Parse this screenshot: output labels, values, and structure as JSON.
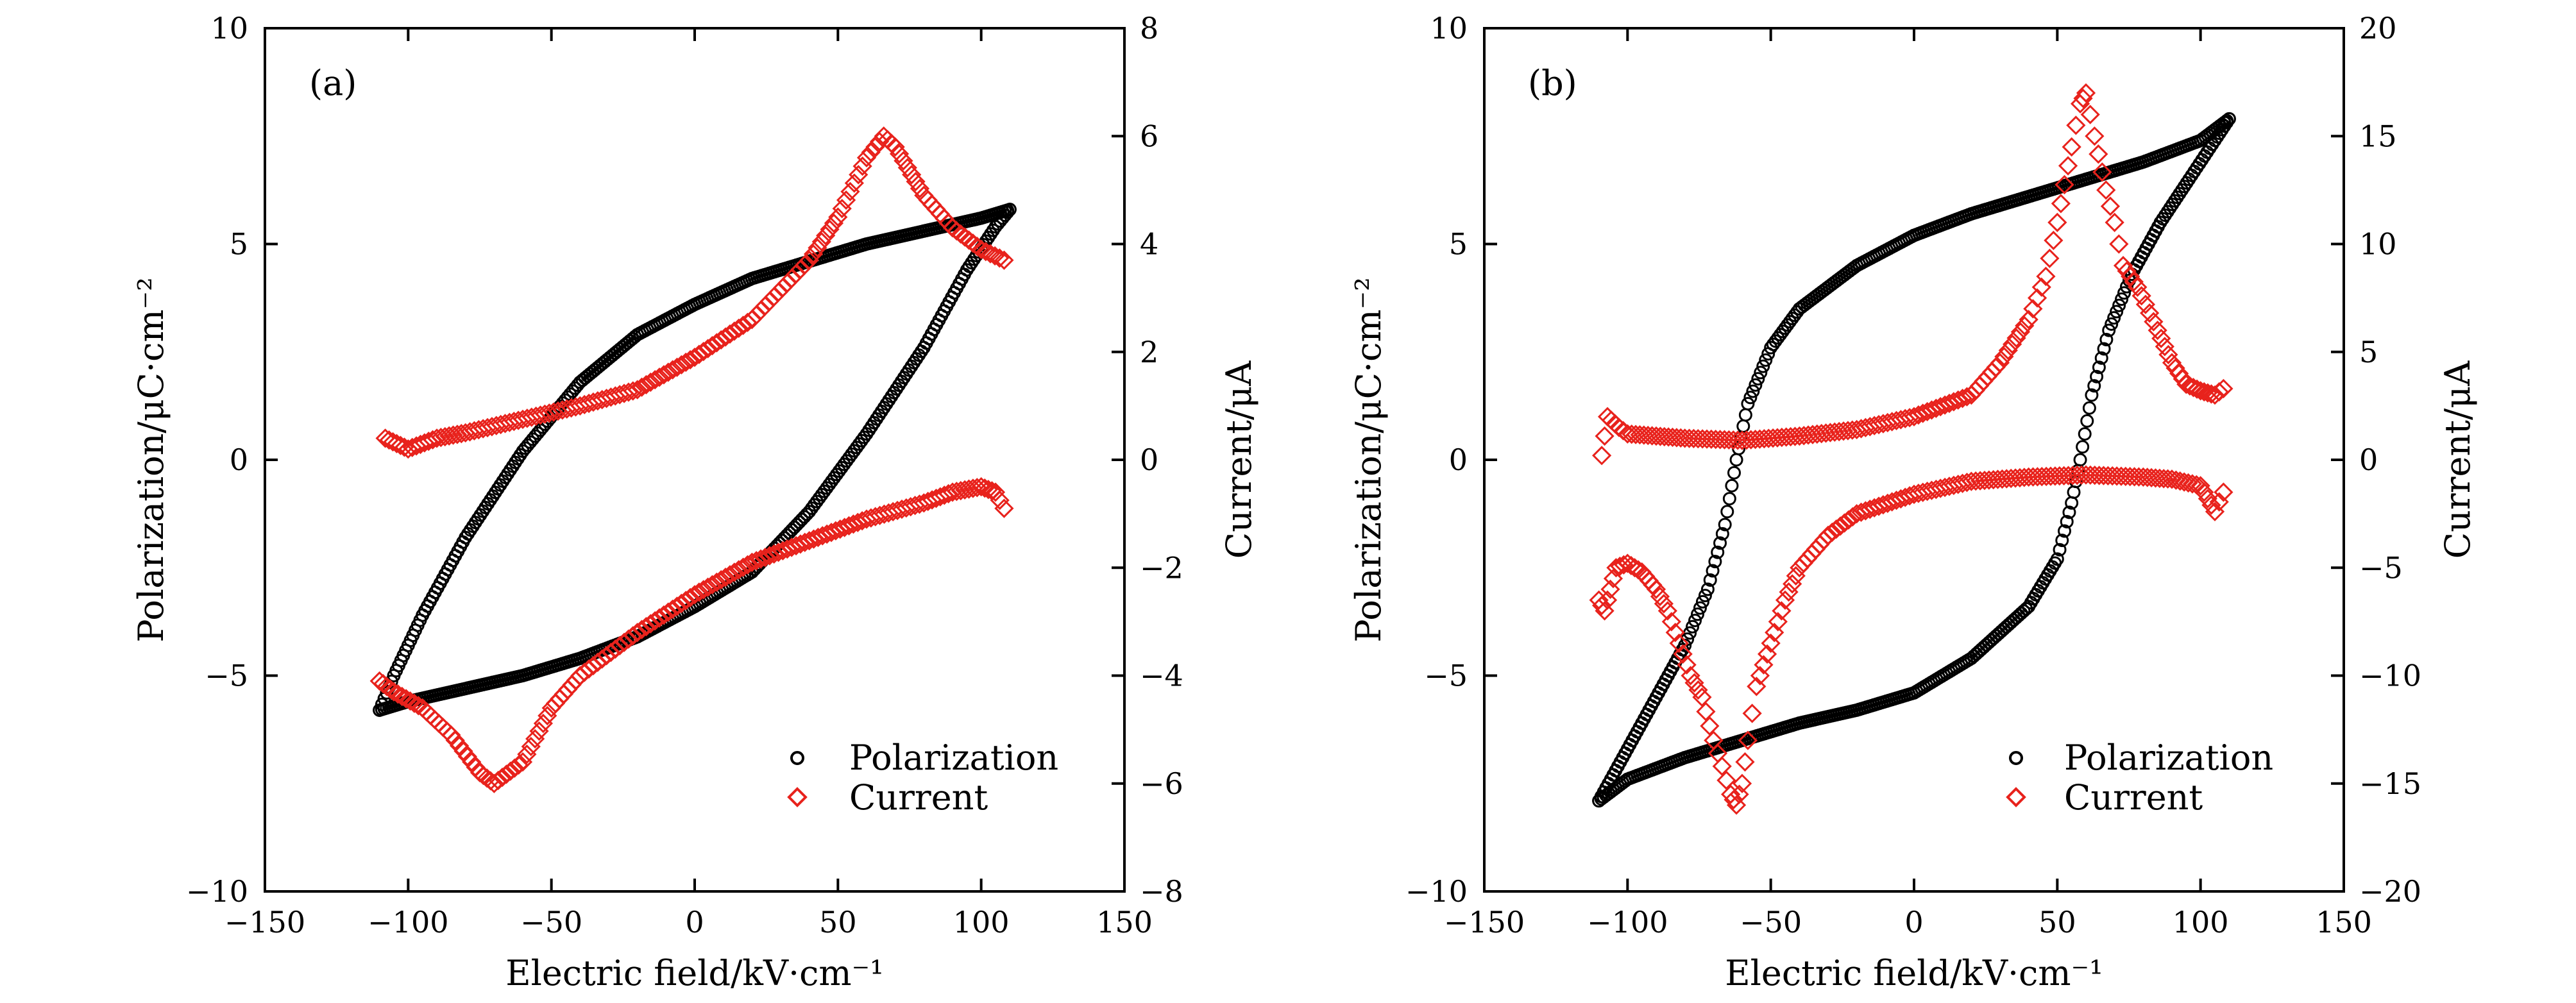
{
  "chart_data": [
    {
      "type": "scatter",
      "panel_label": "(a)",
      "xlabel": "Electric field/kV·cm⁻¹",
      "ylabel_left": "Polarization/μC·cm⁻²",
      "ylabel_right": "Current/μA",
      "xlim": [
        -150,
        150
      ],
      "ylim_left": [
        -10,
        10
      ],
      "ylim_right": [
        -8,
        8
      ],
      "x_ticks": [
        "−150",
        "−100",
        "−50",
        "0",
        "50",
        "100",
        "150"
      ],
      "y_left_ticks": [
        "−10",
        "−5",
        "0",
        "5",
        "10"
      ],
      "y_right_ticks": [
        "−8",
        "−6",
        "−4",
        "−2",
        "0",
        "2",
        "4",
        "6",
        "8"
      ],
      "legend": {
        "position": "bottom-right",
        "entries": [
          "Polarization",
          "Current"
        ]
      },
      "series": [
        {
          "name": "Polarization",
          "axis": "left",
          "marker": "circle",
          "color": "#000000",
          "branches": [
            [
              [
                110,
                5.8
              ],
              [
                100,
                5.6
              ],
              [
                80,
                5.3
              ],
              [
                60,
                5.0
              ],
              [
                40,
                4.6
              ],
              [
                20,
                4.2
              ],
              [
                0,
                3.6
              ],
              [
                -20,
                2.9
              ],
              [
                -40,
                1.8
              ],
              [
                -60,
                0.2
              ],
              [
                -80,
                -1.8
              ],
              [
                -95,
                -3.6
              ],
              [
                -105,
                -5.0
              ],
              [
                -110,
                -5.8
              ]
            ],
            [
              [
                -110,
                -5.8
              ],
              [
                -100,
                -5.6
              ],
              [
                -80,
                -5.3
              ],
              [
                -60,
                -5.0
              ],
              [
                -40,
                -4.6
              ],
              [
                -20,
                -4.1
              ],
              [
                0,
                -3.4
              ],
              [
                20,
                -2.6
              ],
              [
                40,
                -1.2
              ],
              [
                60,
                0.6
              ],
              [
                80,
                2.6
              ],
              [
                95,
                4.4
              ],
              [
                105,
                5.4
              ],
              [
                110,
                5.8
              ]
            ]
          ]
        },
        {
          "name": "Current",
          "axis": "right",
          "marker": "diamond",
          "color": "#e8221c",
          "branches": [
            [
              [
                -108,
                0.4
              ],
              [
                -104,
                0.3
              ],
              [
                -100,
                0.2
              ],
              [
                -90,
                0.4
              ],
              [
                -80,
                0.5
              ],
              [
                -60,
                0.75
              ],
              [
                -40,
                1.0
              ],
              [
                -20,
                1.3
              ],
              [
                0,
                1.9
              ],
              [
                20,
                2.6
              ],
              [
                40,
                3.7
              ],
              [
                50,
                4.5
              ],
              [
                60,
                5.6
              ],
              [
                66,
                6.0
              ],
              [
                70,
                5.8
              ],
              [
                80,
                4.9
              ],
              [
                90,
                4.3
              ],
              [
                100,
                3.9
              ],
              [
                108,
                3.7
              ]
            ],
            [
              [
                108,
                -0.9
              ],
              [
                105,
                -0.6
              ],
              [
                100,
                -0.5
              ],
              [
                90,
                -0.6
              ],
              [
                80,
                -0.8
              ],
              [
                60,
                -1.1
              ],
              [
                40,
                -1.5
              ],
              [
                20,
                -1.9
              ],
              [
                0,
                -2.5
              ],
              [
                -20,
                -3.2
              ],
              [
                -40,
                -4.0
              ],
              [
                -50,
                -4.6
              ],
              [
                -60,
                -5.6
              ],
              [
                -70,
                -6.0
              ],
              [
                -75,
                -5.8
              ],
              [
                -85,
                -5.1
              ],
              [
                -95,
                -4.6
              ],
              [
                -105,
                -4.3
              ],
              [
                -110,
                -4.1
              ]
            ]
          ]
        }
      ]
    },
    {
      "type": "scatter",
      "panel_label": "(b)",
      "xlabel": "Electric field/kV·cm⁻¹",
      "ylabel_left": "Polarization/μC·cm⁻²",
      "ylabel_right": "Current/μA",
      "xlim": [
        -150,
        150
      ],
      "ylim_left": [
        -10,
        10
      ],
      "ylim_right": [
        -20,
        20
      ],
      "x_ticks": [
        "−150",
        "−100",
        "−50",
        "0",
        "50",
        "100",
        "150"
      ],
      "y_left_ticks": [
        "−10",
        "−5",
        "0",
        "5",
        "10"
      ],
      "y_right_ticks": [
        "−20",
        "−15",
        "−10",
        "−5",
        "0",
        "5",
        "10",
        "15",
        "20"
      ],
      "legend": {
        "position": "bottom-right",
        "entries": [
          "Polarization",
          "Current"
        ]
      },
      "series": [
        {
          "name": "Polarization",
          "axis": "left",
          "marker": "circle",
          "color": "#000000",
          "branches": [
            [
              [
                110,
                7.9
              ],
              [
                100,
                7.4
              ],
              [
                80,
                6.9
              ],
              [
                60,
                6.5
              ],
              [
                40,
                6.1
              ],
              [
                20,
                5.7
              ],
              [
                0,
                5.2
              ],
              [
                -20,
                4.5
              ],
              [
                -40,
                3.5
              ],
              [
                -50,
                2.6
              ],
              [
                -58,
                1.3
              ],
              [
                -62,
                0.0
              ],
              [
                -66,
                -1.5
              ],
              [
                -72,
                -3.0
              ],
              [
                -80,
                -4.3
              ],
              [
                -90,
                -5.5
              ],
              [
                -100,
                -6.7
              ],
              [
                -110,
                -7.9
              ]
            ],
            [
              [
                -110,
                -7.9
              ],
              [
                -100,
                -7.4
              ],
              [
                -80,
                -6.9
              ],
              [
                -60,
                -6.5
              ],
              [
                -40,
                -6.1
              ],
              [
                -20,
                -5.8
              ],
              [
                0,
                -5.4
              ],
              [
                20,
                -4.6
              ],
              [
                40,
                -3.4
              ],
              [
                50,
                -2.3
              ],
              [
                55,
                -1.0
              ],
              [
                58,
                0.0
              ],
              [
                62,
                1.5
              ],
              [
                68,
                3.0
              ],
              [
                76,
                4.3
              ],
              [
                86,
                5.5
              ],
              [
                96,
                6.5
              ],
              [
                105,
                7.4
              ],
              [
                110,
                7.9
              ]
            ]
          ]
        },
        {
          "name": "Current",
          "axis": "right",
          "marker": "diamond",
          "color": "#e8221c",
          "branches": [
            [
              [
                -109,
                0.2
              ],
              [
                -107,
                2.0
              ],
              [
                -103,
                1.5
              ],
              [
                -100,
                1.2
              ],
              [
                -90,
                1.1
              ],
              [
                -80,
                1.0
              ],
              [
                -60,
                0.9
              ],
              [
                -40,
                1.1
              ],
              [
                -20,
                1.4
              ],
              [
                0,
                2.0
              ],
              [
                20,
                3.0
              ],
              [
                30,
                4.5
              ],
              [
                40,
                6.5
              ],
              [
                46,
                8.5
              ],
              [
                50,
                11
              ],
              [
                55,
                14.5
              ],
              [
                58,
                16.5
              ],
              [
                60,
                17
              ],
              [
                63,
                15
              ],
              [
                67,
                12.5
              ],
              [
                70,
                11
              ],
              [
                73,
                9
              ],
              [
                78,
                8
              ],
              [
                85,
                6
              ],
              [
                90,
                4.5
              ],
              [
                95,
                3.5
              ],
              [
                100,
                3.2
              ],
              [
                105,
                3.0
              ],
              [
                108,
                3.3
              ]
            ],
            [
              [
                108,
                -1.5
              ],
              [
                105,
                -2.4
              ],
              [
                100,
                -1.2
              ],
              [
                90,
                -0.9
              ],
              [
                80,
                -0.8
              ],
              [
                60,
                -0.7
              ],
              [
                40,
                -0.8
              ],
              [
                20,
                -1.0
              ],
              [
                0,
                -1.6
              ],
              [
                -20,
                -2.5
              ],
              [
                -30,
                -3.5
              ],
              [
                -40,
                -5.0
              ],
              [
                -45,
                -6.5
              ],
              [
                -50,
                -8.5
              ],
              [
                -55,
                -10.5
              ],
              [
                -58,
                -13.0
              ],
              [
                -60,
                -15.0
              ],
              [
                -62,
                -16.0
              ],
              [
                -64,
                -15.5
              ],
              [
                -67,
                -14.2
              ],
              [
                -70,
                -13.0
              ],
              [
                -74,
                -11.0
              ],
              [
                -78,
                -10.0
              ],
              [
                -82,
                -8.5
              ],
              [
                -86,
                -7.0
              ],
              [
                -90,
                -6.0
              ],
              [
                -95,
                -5.2
              ],
              [
                -100,
                -4.8
              ],
              [
                -104,
                -5.0
              ],
              [
                -106,
                -6.0
              ],
              [
                -108,
                -7.0
              ],
              [
                -110,
                -6.5
              ]
            ]
          ]
        }
      ]
    }
  ]
}
